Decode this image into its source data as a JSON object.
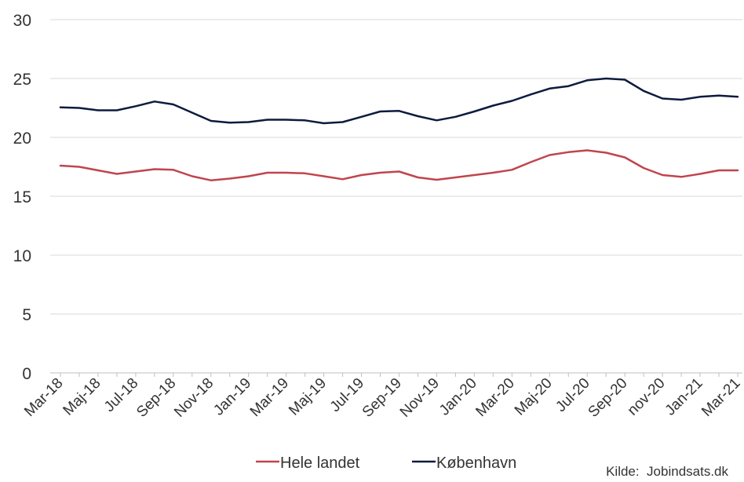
{
  "chart_data": {
    "type": "line",
    "title": "",
    "xlabel": "",
    "ylabel": "",
    "ylim": [
      0,
      30
    ],
    "yticks": [
      0,
      5,
      10,
      15,
      20,
      25,
      30
    ],
    "grid": true,
    "legend_position": "bottom",
    "x": [
      "Mar-18",
      "Apr-18",
      "Maj-18",
      "Jun-18",
      "Jul-18",
      "Aug-18",
      "Sep-18",
      "Okt-18",
      "Nov-18",
      "Dec-18",
      "Jan-19",
      "Feb-19",
      "Mar-19",
      "Apr-19",
      "Maj-19",
      "Jun-19",
      "Jul-19",
      "Aug-19",
      "Sep-19",
      "Okt-19",
      "Nov-19",
      "Dec-19",
      "Jan-20",
      "Feb-20",
      "Mar-20",
      "Apr-20",
      "Maj-20",
      "Jun-20",
      "Jul-20",
      "Aug-20",
      "Sep-20",
      "Okt-20",
      "nov-20",
      "Dec-20",
      "Jan-21",
      "Feb-21",
      "Mar-21"
    ],
    "xtick_labels": [
      "Mar-18",
      "Maj-18",
      "Jul-18",
      "Sep-18",
      "Nov-18",
      "Jan-19",
      "Mar-19",
      "Maj-19",
      "Jul-19",
      "Sep-19",
      "Nov-19",
      "Jan-20",
      "Mar-20",
      "Maj-20",
      "Jul-20",
      "Sep-20",
      "nov-20",
      "Jan-21",
      "Mar-21"
    ],
    "series": [
      {
        "name": "Hele landet",
        "color": "#c0454d",
        "values": [
          17.6,
          17.5,
          17.2,
          16.9,
          17.1,
          17.3,
          17.25,
          16.7,
          16.35,
          16.5,
          16.7,
          17.0,
          17.0,
          16.95,
          16.7,
          16.45,
          16.8,
          17.0,
          17.1,
          16.6,
          16.4,
          16.6,
          16.8,
          17.0,
          17.25,
          17.9,
          18.5,
          18.75,
          18.9,
          18.7,
          18.3,
          17.4,
          16.8,
          16.65,
          16.9,
          17.2,
          17.2
        ]
      },
      {
        "name": "København",
        "color": "#0d1b3e",
        "values": [
          22.55,
          22.5,
          22.3,
          22.3,
          22.65,
          23.05,
          22.8,
          22.1,
          21.4,
          21.25,
          21.3,
          21.5,
          21.5,
          21.45,
          21.2,
          21.3,
          21.75,
          22.2,
          22.25,
          21.8,
          21.45,
          21.75,
          22.2,
          22.7,
          23.1,
          23.65,
          24.15,
          24.35,
          24.85,
          25.0,
          24.9,
          23.95,
          23.3,
          23.2,
          23.45,
          23.55,
          23.45
        ]
      }
    ],
    "source": "Kilde:  Jobindsats.dk"
  }
}
